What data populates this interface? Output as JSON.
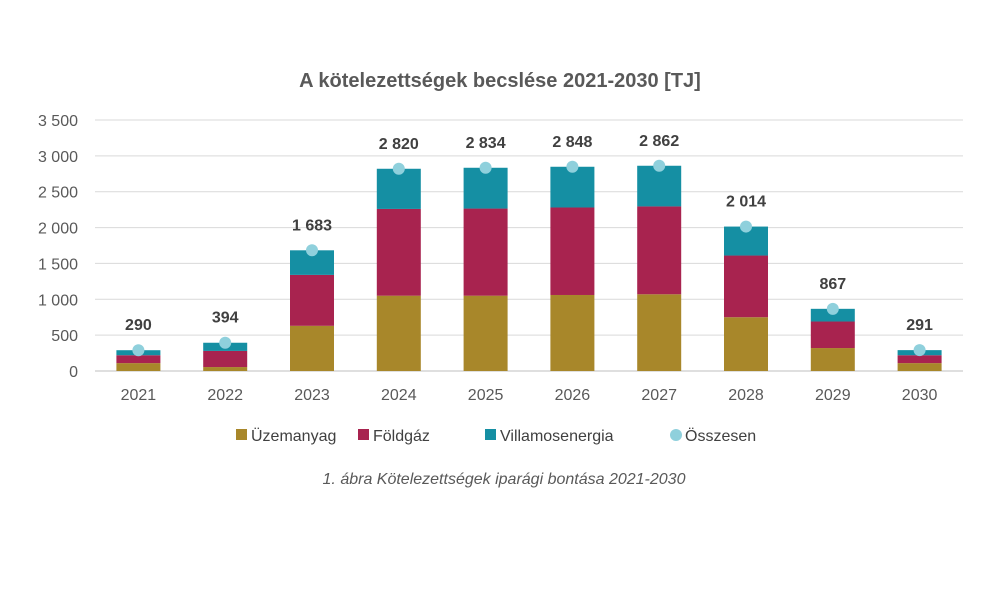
{
  "chart_data": {
    "type": "bar",
    "stacked": true,
    "title": "A kötelezettségek becslése 2021-2030 [TJ]",
    "caption": "1. ábra Kötelezettségek iparági bontása 2021-2030",
    "categories": [
      "2021",
      "2022",
      "2023",
      "2024",
      "2025",
      "2026",
      "2027",
      "2028",
      "2029",
      "2030"
    ],
    "ylim": [
      0,
      3500
    ],
    "yticks": [
      0,
      500,
      1000,
      1500,
      2000,
      2500,
      3000,
      3500
    ],
    "ytick_labels": [
      "0",
      "500",
      "1 000",
      "1 500",
      "2 000",
      "2 500",
      "3 000",
      "3 500"
    ],
    "grid": true,
    "legend_position": "bottom",
    "series": [
      {
        "name": "Üzemanyag",
        "color": "#A8872A",
        "values": [
          110,
          55,
          630,
          1050,
          1050,
          1060,
          1070,
          750,
          320,
          110
        ]
      },
      {
        "name": "Földgáz",
        "color": "#A8234F",
        "values": [
          110,
          225,
          710,
          1210,
          1215,
          1220,
          1225,
          860,
          370,
          110
        ]
      },
      {
        "name": "Villamosenergia",
        "color": "#158FA3",
        "values": [
          70,
          114,
          343,
          560,
          569,
          568,
          567,
          404,
          177,
          71
        ]
      }
    ],
    "total": {
      "name": "Összesen",
      "color": "#8FD0DC",
      "values": [
        290,
        394,
        1683,
        2820,
        2834,
        2848,
        2862,
        2014,
        867,
        291
      ],
      "labels": [
        "290",
        "394",
        "1 683",
        "2 820",
        "2 834",
        "2 848",
        "2 862",
        "2 014",
        "867",
        "291"
      ]
    }
  }
}
